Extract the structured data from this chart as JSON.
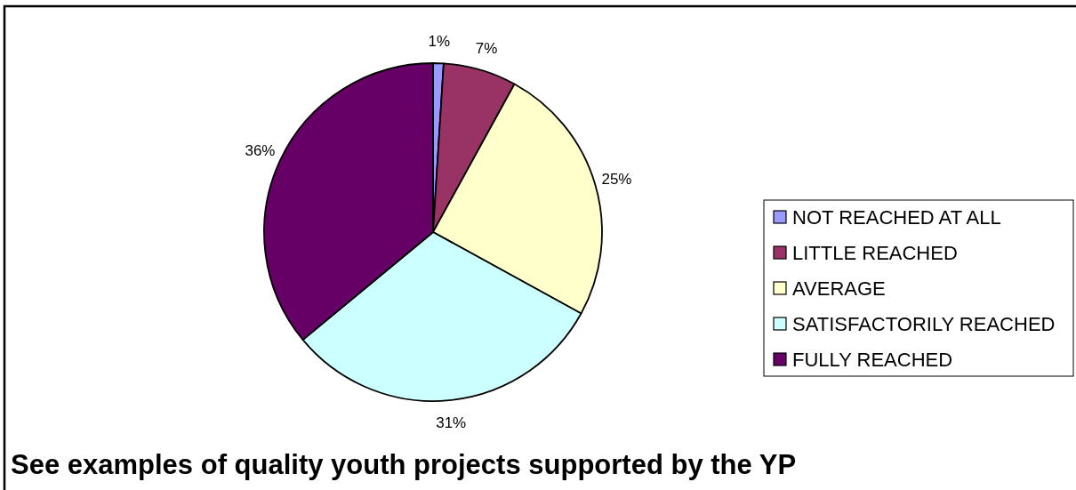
{
  "chart_data": {
    "type": "pie",
    "categories": [
      "NOT REACHED AT ALL",
      "LITTLE REACHED",
      "AVERAGE",
      "SATISFACTORILY REACHED",
      "FULLY REACHED"
    ],
    "values": [
      1,
      7,
      25,
      31,
      36
    ],
    "colors": [
      "#9999ff",
      "#993366",
      "#ffffcc",
      "#ccffff",
      "#660066"
    ],
    "value_labels": [
      "1%",
      "7%",
      "25%",
      "31%",
      "36%"
    ],
    "legend": "right",
    "annotations": [
      "See examples of quality youth projects supported by the YP"
    ]
  }
}
